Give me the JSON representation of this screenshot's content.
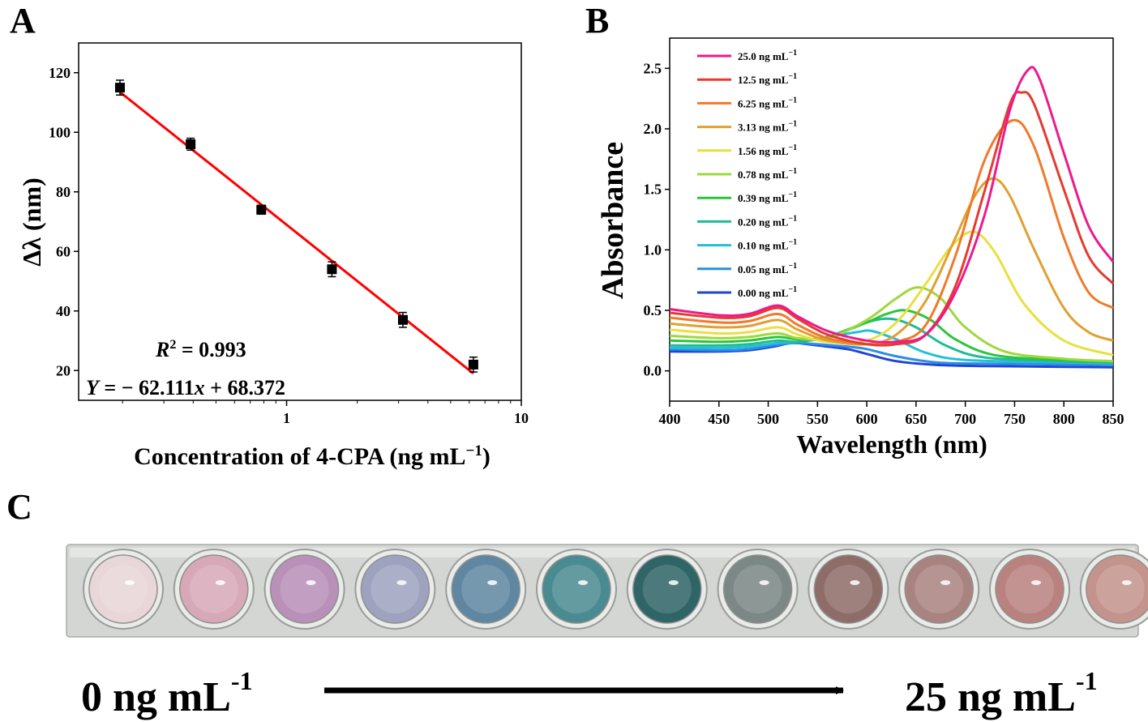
{
  "panel_labels": {
    "a": "A",
    "b": "B",
    "c": "C"
  },
  "panel_a": {
    "ylabel": "Δλ (nm)",
    "xlabel": "Concentration of 4-CPA (ng mL",
    "xlabel_exp": "−1",
    "xlabel_close": ")",
    "yticks": [
      "20",
      "40",
      "60",
      "80",
      "100",
      "120"
    ],
    "xticks": [
      "1",
      "10"
    ],
    "r2_symbol": "R",
    "r2_exp": "2",
    "r2_value": " = 0.993",
    "eq_y": "Y",
    "eq_mid": " = − 62.111",
    "eq_x": "x",
    "eq_end": " + 68.372",
    "line_color": "#ff0000"
  },
  "panel_b": {
    "ylabel": "Absorbance",
    "xlabel": "Wavelength (nm)",
    "xticks": [
      "400",
      "450",
      "500",
      "550",
      "600",
      "650",
      "700",
      "750",
      "800",
      "850"
    ],
    "yticks": [
      "0.0",
      "0.5",
      "1.0",
      "1.5",
      "2.0",
      "2.5"
    ],
    "unit": " ng mL",
    "unit_exp": "−1"
  },
  "panel_c": {
    "left_label": "0 ng mL",
    "left_exp": "-1",
    "right_label": "25 ng mL",
    "right_exp": "-1",
    "well_colors": [
      "#e8d6d8",
      "#d7a8b8",
      "#b890b8",
      "#9ea2be",
      "#5f87a2",
      "#4a8b92",
      "#2f6567",
      "#7b8885",
      "#8e6c68",
      "#a98380",
      "#b9827f",
      "#c3938c"
    ]
  },
  "chart_data": [
    {
      "type": "scatter",
      "title": "",
      "xscale": "log",
      "xlabel": "Concentration of 4-CPA (ng mL−1)",
      "ylabel": "Δλ (nm)",
      "xlim": [
        0.13,
        10
      ],
      "ylim": [
        10,
        130
      ],
      "x": [
        0.195,
        0.39,
        0.78,
        1.56,
        3.13,
        6.25
      ],
      "y": [
        115,
        96,
        74,
        54,
        37,
        22
      ],
      "errors": [
        2.5,
        2.0,
        1.5,
        2.5,
        2.5,
        2.5
      ],
      "fit": {
        "equation": "Y = − 62.111x + 68.372",
        "r2": 0.993,
        "x_range": [
          0.195,
          6.25
        ],
        "y_range": [
          113.5,
          19
        ]
      }
    },
    {
      "type": "line",
      "title": "",
      "xlabel": "Wavelength (nm)",
      "ylabel": "Absorbance",
      "xlim": [
        400,
        850
      ],
      "ylim": [
        -0.25,
        2.75
      ],
      "legend_position": "top-left",
      "series": [
        {
          "name": "25.0 ng mL−1",
          "color": "#ec1a8c",
          "points": [
            [
              400,
              0.51
            ],
            [
              450,
              0.46
            ],
            [
              480,
              0.47
            ],
            [
              510,
              0.54
            ],
            [
              530,
              0.45
            ],
            [
              560,
              0.33
            ],
            [
              600,
              0.25
            ],
            [
              630,
              0.24
            ],
            [
              660,
              0.3
            ],
            [
              690,
              0.65
            ],
            [
              720,
              1.3
            ],
            [
              745,
              2.15
            ],
            [
              763,
              2.48
            ],
            [
              775,
              2.42
            ],
            [
              800,
              1.8
            ],
            [
              825,
              1.2
            ],
            [
              850,
              0.9
            ]
          ]
        },
        {
          "name": "12.5 ng mL−1",
          "color": "#e53a30",
          "points": [
            [
              400,
              0.48
            ],
            [
              450,
              0.44
            ],
            [
              480,
              0.45
            ],
            [
              510,
              0.52
            ],
            [
              530,
              0.43
            ],
            [
              560,
              0.3
            ],
            [
              600,
              0.22
            ],
            [
              630,
              0.22
            ],
            [
              660,
              0.3
            ],
            [
              690,
              0.7
            ],
            [
              720,
              1.5
            ],
            [
              745,
              2.2
            ],
            [
              757,
              2.3
            ],
            [
              770,
              2.2
            ],
            [
              800,
              1.5
            ],
            [
              825,
              0.95
            ],
            [
              850,
              0.72
            ]
          ]
        },
        {
          "name": "6.25 ng mL−1",
          "color": "#ef7a2a",
          "points": [
            [
              400,
              0.44
            ],
            [
              450,
              0.4
            ],
            [
              480,
              0.41
            ],
            [
              510,
              0.47
            ],
            [
              530,
              0.38
            ],
            [
              560,
              0.27
            ],
            [
              600,
              0.22
            ],
            [
              630,
              0.24
            ],
            [
              660,
              0.38
            ],
            [
              690,
              0.95
            ],
            [
              720,
              1.75
            ],
            [
              748,
              2.07
            ],
            [
              770,
              1.85
            ],
            [
              800,
              1.1
            ],
            [
              825,
              0.65
            ],
            [
              850,
              0.52
            ]
          ]
        },
        {
          "name": "3.13 ng mL−1",
          "color": "#e0a030",
          "points": [
            [
              400,
              0.39
            ],
            [
              450,
              0.36
            ],
            [
              480,
              0.37
            ],
            [
              510,
              0.42
            ],
            [
              530,
              0.34
            ],
            [
              560,
              0.25
            ],
            [
              600,
              0.22
            ],
            [
              630,
              0.3
            ],
            [
              660,
              0.58
            ],
            [
              690,
              1.1
            ],
            [
              710,
              1.45
            ],
            [
              728,
              1.59
            ],
            [
              745,
              1.45
            ],
            [
              770,
              1.0
            ],
            [
              800,
              0.52
            ],
            [
              825,
              0.32
            ],
            [
              850,
              0.25
            ]
          ]
        },
        {
          "name": "1.56 ng mL−1",
          "color": "#e8e040",
          "points": [
            [
              400,
              0.34
            ],
            [
              450,
              0.31
            ],
            [
              480,
              0.32
            ],
            [
              510,
              0.36
            ],
            [
              530,
              0.3
            ],
            [
              560,
              0.24
            ],
            [
              600,
              0.25
            ],
            [
              630,
              0.4
            ],
            [
              660,
              0.72
            ],
            [
              685,
              1.02
            ],
            [
              708,
              1.15
            ],
            [
              730,
              0.98
            ],
            [
              760,
              0.55
            ],
            [
              800,
              0.25
            ],
            [
              850,
              0.13
            ]
          ]
        },
        {
          "name": "0.78 ng mL−1",
          "color": "#9ed83c",
          "points": [
            [
              400,
              0.29
            ],
            [
              450,
              0.27
            ],
            [
              480,
              0.28
            ],
            [
              510,
              0.31
            ],
            [
              530,
              0.27
            ],
            [
              560,
              0.27
            ],
            [
              600,
              0.42
            ],
            [
              630,
              0.6
            ],
            [
              652,
              0.69
            ],
            [
              675,
              0.6
            ],
            [
              700,
              0.36
            ],
            [
              740,
              0.16
            ],
            [
              800,
              0.1
            ],
            [
              850,
              0.08
            ]
          ]
        },
        {
          "name": "0.39 ng mL−1",
          "color": "#2cc43c",
          "points": [
            [
              400,
              0.25
            ],
            [
              450,
              0.24
            ],
            [
              480,
              0.25
            ],
            [
              510,
              0.28
            ],
            [
              530,
              0.26
            ],
            [
              560,
              0.28
            ],
            [
              600,
              0.4
            ],
            [
              620,
              0.47
            ],
            [
              640,
              0.5
            ],
            [
              665,
              0.42
            ],
            [
              690,
              0.26
            ],
            [
              730,
              0.13
            ],
            [
              800,
              0.09
            ],
            [
              850,
              0.08
            ]
          ]
        },
        {
          "name": "0.20 ng mL−1",
          "color": "#1fbc94",
          "points": [
            [
              400,
              0.21
            ],
            [
              450,
              0.21
            ],
            [
              480,
              0.22
            ],
            [
              510,
              0.25
            ],
            [
              530,
              0.24
            ],
            [
              560,
              0.28
            ],
            [
              600,
              0.4
            ],
            [
              625,
              0.43
            ],
            [
              650,
              0.36
            ],
            [
              680,
              0.21
            ],
            [
              720,
              0.11
            ],
            [
              800,
              0.08
            ],
            [
              850,
              0.07
            ]
          ]
        },
        {
          "name": "0.10 ng mL−1",
          "color": "#24c0d4",
          "points": [
            [
              400,
              0.19
            ],
            [
              450,
              0.19
            ],
            [
              480,
              0.2
            ],
            [
              510,
              0.23
            ],
            [
              530,
              0.24
            ],
            [
              560,
              0.28
            ],
            [
              590,
              0.32
            ],
            [
              605,
              0.33
            ],
            [
              630,
              0.26
            ],
            [
              660,
              0.15
            ],
            [
              700,
              0.09
            ],
            [
              800,
              0.07
            ],
            [
              850,
              0.06
            ]
          ]
        },
        {
          "name": "0.05 ng mL−1",
          "color": "#2a8ee4",
          "points": [
            [
              400,
              0.18
            ],
            [
              450,
              0.17
            ],
            [
              480,
              0.18
            ],
            [
              505,
              0.21
            ],
            [
              525,
              0.23
            ],
            [
              550,
              0.22
            ],
            [
              580,
              0.2
            ],
            [
              600,
              0.18
            ],
            [
              630,
              0.12
            ],
            [
              670,
              0.07
            ],
            [
              720,
              0.06
            ],
            [
              850,
              0.05
            ]
          ]
        },
        {
          "name": "0.00 ng mL−1",
          "color": "#2244d4",
          "points": [
            [
              400,
              0.16
            ],
            [
              450,
              0.16
            ],
            [
              480,
              0.17
            ],
            [
              505,
              0.2
            ],
            [
              525,
              0.23
            ],
            [
              550,
              0.21
            ],
            [
              580,
              0.18
            ],
            [
              600,
              0.14
            ],
            [
              630,
              0.08
            ],
            [
              670,
              0.05
            ],
            [
              720,
              0.04
            ],
            [
              850,
              0.03
            ]
          ]
        }
      ]
    }
  ]
}
